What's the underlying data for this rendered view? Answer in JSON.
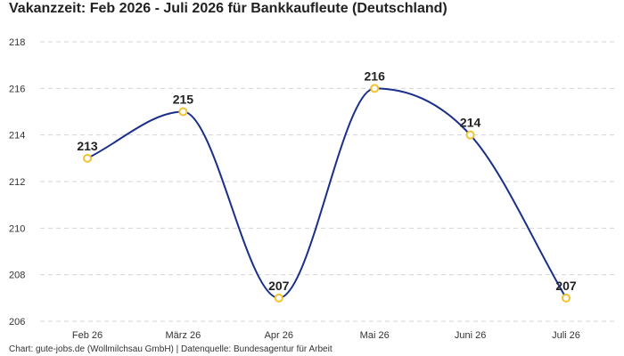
{
  "title": "Vakanzzeit: Feb 2026 - Juli 2026 für Bankkaufleute (Deutschland)",
  "source_note": "Chart: gute-jobs.de (Wollmilchsau GmbH) | Datenquelle: Bundesagentur für Arbeit",
  "colors": {
    "line": "#1a2f8a",
    "marker_stroke": "#f2c230",
    "marker_fill": "#ffffff",
    "grid": "#d4d4d4"
  },
  "chart_data": {
    "type": "line",
    "title": "Vakanzzeit: Feb 2026 - Juli 2026 für Bankkaufleute (Deutschland)",
    "categories": [
      "Feb 26",
      "März 26",
      "Apr 26",
      "Mai 26",
      "Juni 26",
      "Juli 26"
    ],
    "values": [
      213,
      215,
      207,
      216,
      214,
      207
    ],
    "data_labels": [
      "213",
      "215",
      "207",
      "216",
      "214",
      "207"
    ],
    "ylim": [
      206,
      218
    ],
    "yticks": [
      206,
      208,
      210,
      212,
      214,
      216,
      218
    ],
    "xlabel": "",
    "ylabel": "",
    "grid": true,
    "curve": "smooth",
    "legend": "none"
  }
}
